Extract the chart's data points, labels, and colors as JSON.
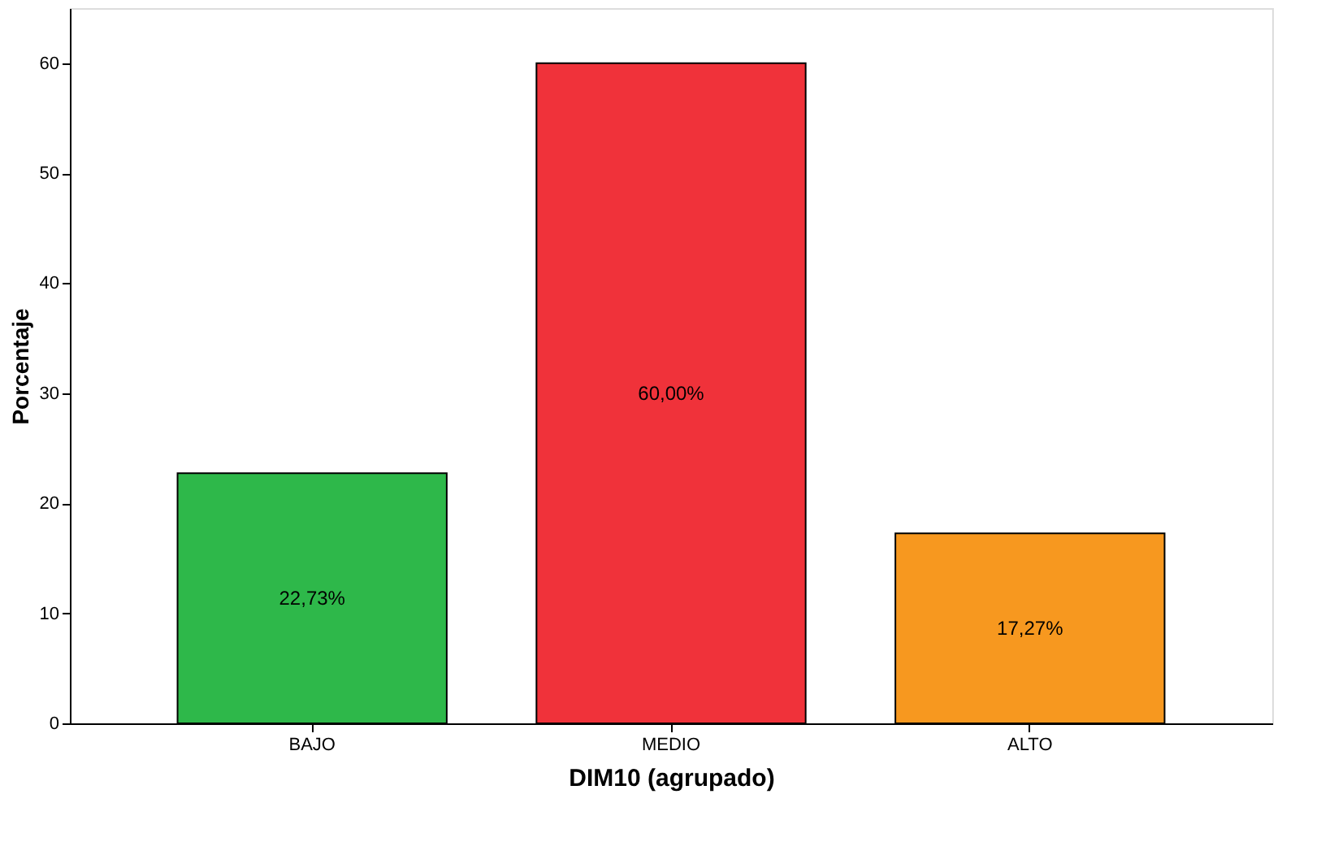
{
  "chart_data": {
    "type": "bar",
    "xlabel": "DIM10 (agrupado)",
    "ylabel": "Porcentaje",
    "categories": [
      "BAJO",
      "MEDIO",
      "ALTO"
    ],
    "values": [
      22.73,
      60.0,
      17.27
    ],
    "colors": [
      "#2eb84a",
      "#f0323a",
      "#f7981f"
    ],
    "value_labels": [
      "22,73%",
      "60,00%",
      "17,27%"
    ],
    "ylim": [
      0,
      65
    ],
    "yticks": [
      0,
      10,
      20,
      30,
      40,
      50,
      60
    ],
    "grid": false,
    "legend": false
  }
}
